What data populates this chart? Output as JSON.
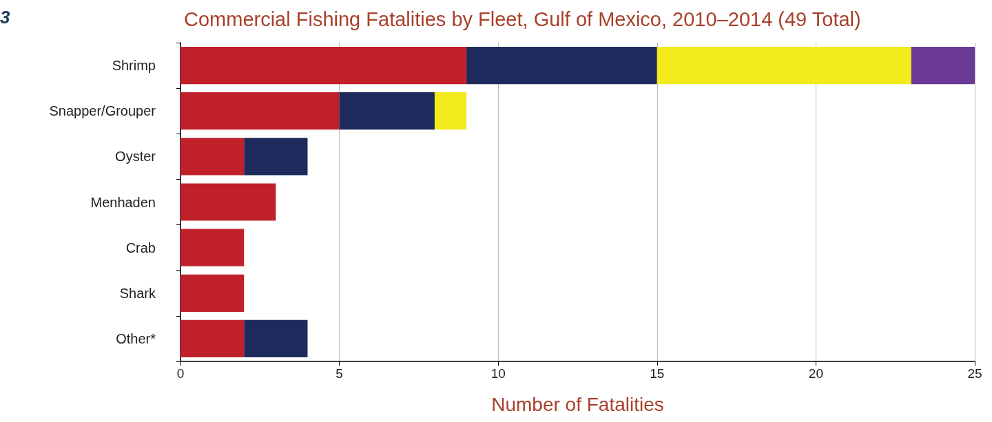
{
  "chart_data": {
    "type": "bar",
    "orientation": "horizontal",
    "stacked": true,
    "title": "Commercial Fishing Fatalities by Fleet, Gulf of Mexico, 2010–2014 (49 Total)",
    "xlabel": "Number of Fatalities",
    "annotations": [
      "3"
    ],
    "categories": [
      "Shrimp",
      "Snapper/Grouper",
      "Oyster",
      "Menhaden",
      "Crab",
      "Shark",
      "Other*"
    ],
    "series": [
      {
        "color": "#c0202a",
        "values": [
          9,
          5,
          2,
          3,
          2,
          2,
          2
        ]
      },
      {
        "color": "#1f2a5c",
        "values": [
          6,
          3,
          2,
          null,
          null,
          null,
          2
        ]
      },
      {
        "color": "#f2ea1c",
        "values": [
          8,
          1,
          null,
          null,
          null,
          null,
          null
        ]
      },
      {
        "color": "#6a3a96",
        "values": [
          2,
          null,
          null,
          null,
          null,
          null,
          null
        ]
      }
    ],
    "xlim": [
      0,
      25
    ],
    "xticks": [
      0,
      5,
      10,
      15,
      20,
      25
    ],
    "grid": "x"
  }
}
